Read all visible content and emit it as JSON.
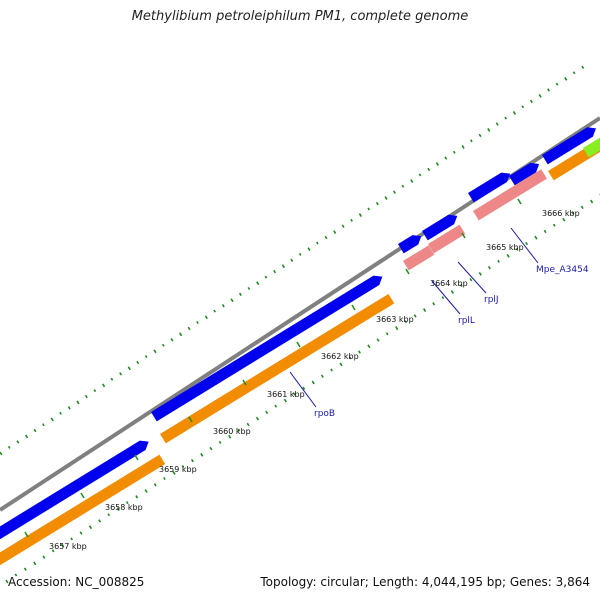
{
  "title": "Methylibium petroleiphilum PM1, complete genome",
  "footer": {
    "accession": "Accession: NC_008825",
    "summary": "Topology: circular; Length: 4,044,195 bp; Genes: 3,864"
  },
  "ticks": [
    "3657 kbp",
    "3658 kbp",
    "3659 kbp",
    "3660 kbp",
    "3661 kbp",
    "3662 kbp",
    "3663 kbp",
    "3664 kbp",
    "3665 kbp",
    "3666 kbp"
  ],
  "gene_labels": [
    "rpoB",
    "rplL",
    "rplJ",
    "Mpe_A3454"
  ],
  "colors": {
    "backbone": "#808080",
    "cds_forward": "#0000ee",
    "orange_track": "#f28c00",
    "pink_track": "#ee8888",
    "lime_track": "#88ee22",
    "tick_green": "#1f8a1f",
    "label_line": "#1a1aa8"
  }
}
